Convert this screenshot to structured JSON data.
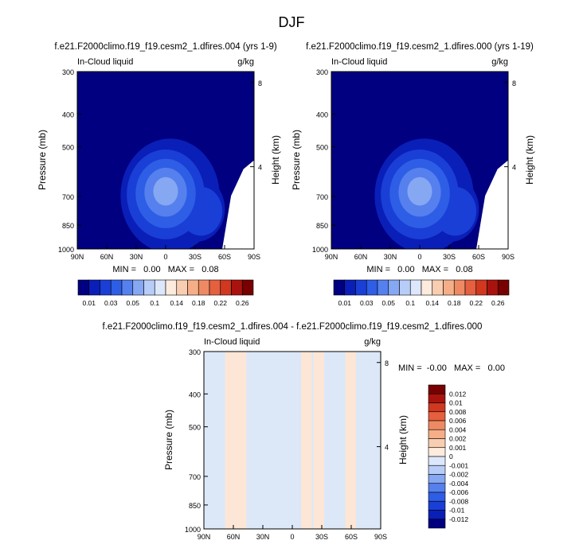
{
  "page_title": "DJF",
  "colors": {
    "background": "#ffffff",
    "field_palette": [
      "#000080",
      "#0a1fb8",
      "#1a3fd6",
      "#2e5ee6",
      "#5580ee",
      "#86a7f2",
      "#b7ccf7",
      "#dce7fb"
    ],
    "anomaly_palette": [
      "#7a0000",
      "#a51a0a",
      "#c8320e",
      "#e3541f",
      "#f07848",
      "#f59f7a",
      "#f9c6aa",
      "#fde6d6",
      "#dce8f8",
      "#b9d1f4",
      "#8fb1ec",
      "#6689e0",
      "#3d63d2",
      "#1d3fc2",
      "#0a22a8",
      "#000080"
    ],
    "diverging_colorbar": [
      "#000080",
      "#0a1fb8",
      "#1a3fd6",
      "#2e5ee6",
      "#5580ee",
      "#86a7f2",
      "#b7ccf7",
      "#dce7fb",
      "#fdebdd",
      "#f9cdb1",
      "#f5ae88",
      "#ee8a63",
      "#e5603e",
      "#d0381f",
      "#a8140d",
      "#780000"
    ]
  },
  "chart_data": [
    {
      "type": "heatmap",
      "title": "f.e21.F2000climo.f19_f19.cesm2_1.dfires.004 (yrs 1-9)",
      "left_label": "In-Cloud liquid",
      "right_label": "g/kg",
      "ylabel": "Pressure (mb)",
      "ylabel_right": "Height (km)",
      "x_ticks": [
        "90N",
        "60N",
        "30N",
        "0",
        "30S",
        "60S",
        "90S"
      ],
      "x_values": [
        90,
        60,
        30,
        0,
        -30,
        -60,
        -90
      ],
      "y_ticks": [
        "300",
        "400",
        "500",
        "700",
        "850",
        "1000"
      ],
      "y_values": [
        300,
        400,
        500,
        700,
        850,
        1000
      ],
      "height_ticks": [
        "8",
        "4"
      ],
      "height_values": [
        8,
        4
      ],
      "ylim": [
        1000,
        300
      ],
      "xlim": [
        90,
        -90
      ],
      "stats": "MIN =   0.00   MAX =   0.08",
      "colorbar_labels": [
        "0.01",
        "0.03",
        "0.05",
        "0.1",
        "0.14",
        "0.18",
        "0.22",
        "0.26"
      ],
      "colorbar_levels": [
        0.01,
        0.02,
        0.03,
        0.04,
        0.05,
        0.06,
        0.08,
        0.1,
        0.12,
        0.14,
        0.16,
        0.18,
        0.2,
        0.22,
        0.24,
        0.26
      ],
      "max_value": 0.08,
      "min_value": 0.0
    },
    {
      "type": "heatmap",
      "title": "f.e21.F2000climo.f19_f19.cesm2_1.dfires.000 (yrs 1-19)",
      "left_label": "In-Cloud liquid",
      "right_label": "g/kg",
      "ylabel": "Pressure (mb)",
      "ylabel_right": "Height (km)",
      "x_ticks": [
        "90N",
        "60N",
        "30N",
        "0",
        "30S",
        "60S",
        "90S"
      ],
      "x_values": [
        90,
        60,
        30,
        0,
        -30,
        -60,
        -90
      ],
      "y_ticks": [
        "300",
        "400",
        "500",
        "700",
        "850",
        "1000"
      ],
      "y_values": [
        300,
        400,
        500,
        700,
        850,
        1000
      ],
      "height_ticks": [
        "8",
        "4"
      ],
      "height_values": [
        8,
        4
      ],
      "ylim": [
        1000,
        300
      ],
      "xlim": [
        90,
        -90
      ],
      "stats": "MIN =   0.00   MAX =   0.08",
      "colorbar_labels": [
        "0.01",
        "0.03",
        "0.05",
        "0.1",
        "0.14",
        "0.18",
        "0.22",
        "0.26"
      ],
      "colorbar_levels": [
        0.01,
        0.02,
        0.03,
        0.04,
        0.05,
        0.06,
        0.08,
        0.1,
        0.12,
        0.14,
        0.16,
        0.18,
        0.2,
        0.22,
        0.24,
        0.26
      ],
      "max_value": 0.08,
      "min_value": 0.0
    },
    {
      "type": "heatmap",
      "title": "f.e21.F2000climo.f19_f19.cesm2_1.dfires.004 - f.e21.F2000climo.f19_f19.cesm2_1.dfires.000",
      "left_label": "In-Cloud liquid",
      "right_label": "g/kg",
      "ylabel": "Pressure (mb)",
      "ylabel_right": "Height (km)",
      "x_ticks": [
        "90N",
        "60N",
        "30N",
        "0",
        "30S",
        "60S",
        "90S"
      ],
      "x_values": [
        90,
        60,
        30,
        0,
        -30,
        -60,
        -90
      ],
      "y_ticks": [
        "300",
        "400",
        "500",
        "700",
        "850",
        "1000"
      ],
      "y_values": [
        300,
        400,
        500,
        700,
        850,
        1000
      ],
      "height_ticks": [
        "8",
        "4"
      ],
      "height_values": [
        8,
        4
      ],
      "ylim": [
        1000,
        300
      ],
      "xlim": [
        90,
        -90
      ],
      "stats": "MIN =  -0.00   MAX =   0.00",
      "colorbar_labels": [
        "0.012",
        "0.01",
        "0.008",
        "0.006",
        "0.004",
        "0.002",
        "0.001",
        "0",
        "-0.001",
        "-0.002",
        "-0.004",
        "-0.006",
        "-0.008",
        "-0.01",
        "-0.012"
      ],
      "colorbar_levels": [
        0.012,
        0.01,
        0.008,
        0.006,
        0.004,
        0.002,
        0.001,
        0,
        -0.001,
        -0.002,
        -0.004,
        -0.006,
        -0.008,
        -0.01,
        -0.012
      ],
      "max_value": 0.0,
      "min_value": -0.0
    }
  ]
}
